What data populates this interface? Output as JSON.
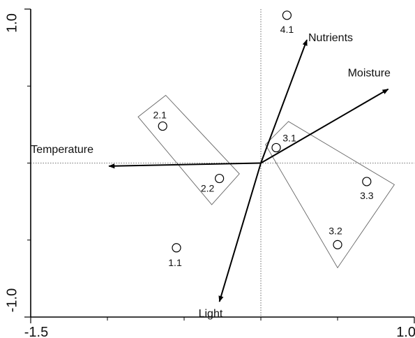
{
  "chart_data": {
    "type": "scatter",
    "title": "",
    "xlabel": "",
    "ylabel": "",
    "xlim": [
      -1.5,
      1.0
    ],
    "ylim": [
      -1.0,
      1.0
    ],
    "x_ticks": [
      {
        "value": -1.5,
        "label": "-1.5"
      },
      {
        "value": 1.0,
        "label": "1.0"
      }
    ],
    "y_ticks": [
      {
        "value": 1.0,
        "label": "1.0"
      },
      {
        "value": -1.0,
        "label": "-1.0"
      }
    ],
    "x_minor_ticks": [
      -1.0,
      -0.5,
      0.0,
      0.5
    ],
    "y_minor_ticks": [
      0.5,
      0.0,
      -0.5
    ],
    "reference_lines": {
      "x": 0.0,
      "y": 0.0,
      "style": "dotted"
    },
    "points": [
      {
        "label": "1.1",
        "x": -0.55,
        "y": -0.55
      },
      {
        "label": "2.1",
        "x": -0.64,
        "y": 0.24
      },
      {
        "label": "2.2",
        "x": -0.27,
        "y": -0.1
      },
      {
        "label": "3.1",
        "x": 0.1,
        "y": 0.1
      },
      {
        "label": "3.2",
        "x": 0.5,
        "y": -0.53
      },
      {
        "label": "3.3",
        "x": 0.69,
        "y": -0.12
      },
      {
        "label": "4.1",
        "x": 0.17,
        "y": 0.96
      }
    ],
    "vectors": [
      {
        "name": "Nutrients",
        "x": 0.3,
        "y": 0.8
      },
      {
        "name": "Moisture",
        "x": 0.83,
        "y": 0.48
      },
      {
        "name": "Temperature",
        "x": -0.99,
        "y": -0.02
      },
      {
        "name": "Light",
        "x": -0.27,
        "y": -0.9
      }
    ],
    "groups": [
      {
        "name": "2",
        "polygon": [
          [
            -0.8,
            0.3
          ],
          [
            -0.62,
            0.44
          ],
          [
            -0.14,
            -0.07
          ],
          [
            -0.32,
            -0.27
          ]
        ]
      },
      {
        "name": "3",
        "polygon": [
          [
            0.03,
            0.12
          ],
          [
            0.18,
            0.27
          ],
          [
            0.87,
            -0.14
          ],
          [
            0.5,
            -0.68
          ]
        ]
      }
    ],
    "grid": false,
    "legend": "none"
  }
}
